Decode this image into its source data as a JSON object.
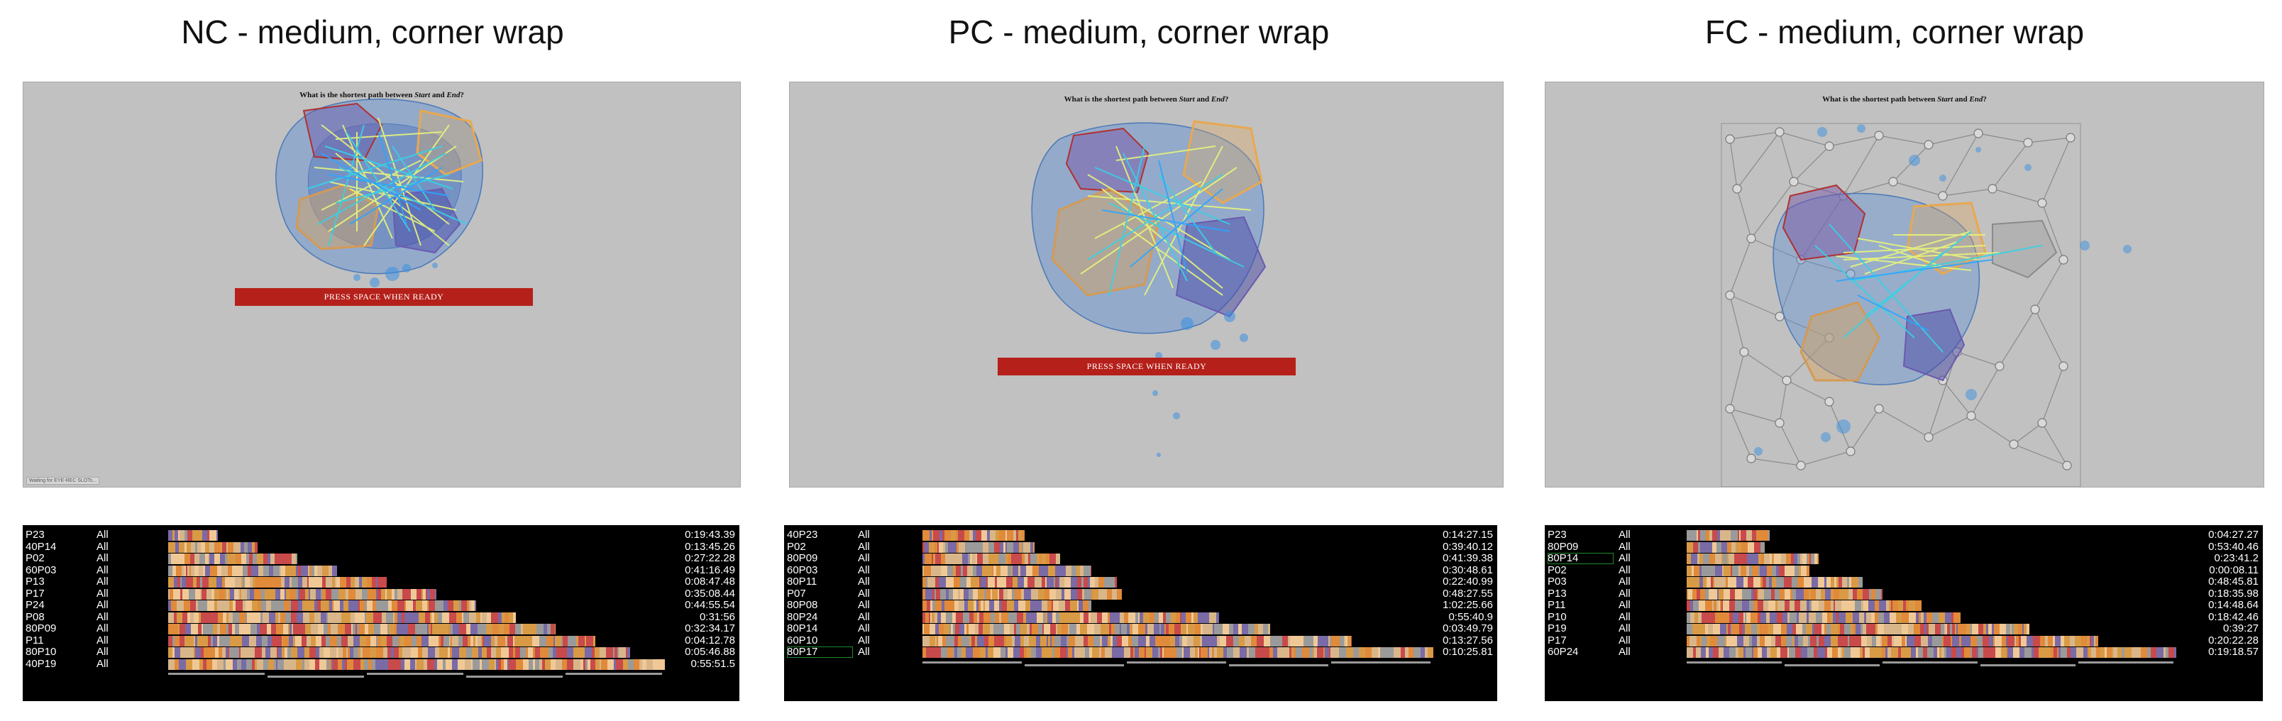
{
  "colors": {
    "background": "#c1c1c1",
    "press_bar": "#b5201a",
    "timeline_bg": "#000000",
    "event_palette": [
      "#c94a4b",
      "#d99a46",
      "#d9b68a",
      "#7a6aa6",
      "#e08a3a",
      "#9a9a9a",
      "#f0c896"
    ]
  },
  "panels": [
    {
      "title": "NC - medium, corner wrap",
      "question": {
        "pre": "What is the shortest path between ",
        "start": "Start",
        "mid": " and ",
        "end": "End",
        "post": "?"
      },
      "press_label": "PRESS SPACE WHEN READY",
      "status_text": "Waiting for EYE-REC SLOTs...",
      "rows": [
        {
          "id": "P23",
          "filter": "All",
          "duration": "0:19:43.39",
          "len": 0.1
        },
        {
          "id": "40P14",
          "filter": "All",
          "duration": "0:13:45.26",
          "len": 0.18
        },
        {
          "id": "P02",
          "filter": "All",
          "duration": "0:27:22.28",
          "len": 0.26
        },
        {
          "id": "60P03",
          "filter": "All",
          "duration": "0:41:16.49",
          "len": 0.34
        },
        {
          "id": "P13",
          "filter": "All",
          "duration": "0:08:47.48",
          "len": 0.44
        },
        {
          "id": "P17",
          "filter": "All",
          "duration": "0:35:08.44",
          "len": 0.54
        },
        {
          "id": "P24",
          "filter": "All",
          "duration": "0:44:55.54",
          "len": 0.62
        },
        {
          "id": "P08",
          "filter": "All",
          "duration": "0:31:56",
          "len": 0.7
        },
        {
          "id": "80P09",
          "filter": "All",
          "duration": "0:32:34.17",
          "len": 0.78
        },
        {
          "id": "P11",
          "filter": "All",
          "duration": "0:04:12.78",
          "len": 0.86
        },
        {
          "id": "80P10",
          "filter": "All",
          "duration": "0:05:46.88",
          "len": 0.93
        },
        {
          "id": "40P19",
          "filter": "All",
          "duration": "0:55:51.5",
          "len": 1.0
        }
      ]
    },
    {
      "title": "PC - medium, corner wrap",
      "question": {
        "pre": "What is the shortest path between ",
        "start": "Start",
        "mid": " and ",
        "end": "End",
        "post": "?"
      },
      "press_label": "PRESS SPACE WHEN READY",
      "rows": [
        {
          "id": "40P23",
          "filter": "All",
          "duration": "0:14:27.15",
          "len": 0.2
        },
        {
          "id": "P02",
          "filter": "All",
          "duration": "0:39:40.12",
          "len": 0.22
        },
        {
          "id": "80P09",
          "filter": "All",
          "duration": "0:41:39.38",
          "len": 0.27
        },
        {
          "id": "60P03",
          "filter": "All",
          "duration": "0:30:48.61",
          "len": 0.33
        },
        {
          "id": "80P11",
          "filter": "All",
          "duration": "0:22:40.99",
          "len": 0.38
        },
        {
          "id": "P07",
          "filter": "All",
          "duration": "0:48:27.55",
          "len": 0.39
        },
        {
          "id": "80P08",
          "filter": "All",
          "duration": "1:02:25.66",
          "len": 0.33
        },
        {
          "id": "80P24",
          "filter": "All",
          "duration": "0:55:40.9",
          "len": 0.58
        },
        {
          "id": "80P14",
          "filter": "All",
          "duration": "0:03:49.79",
          "len": 0.68
        },
        {
          "id": "60P10",
          "filter": "All",
          "duration": "0:13:27.56",
          "len": 0.84
        },
        {
          "id": "80P17",
          "filter": "All",
          "duration": "0:10:25.81",
          "len": 1.0,
          "selected": true
        }
      ]
    },
    {
      "title": "FC - medium, corner wrap",
      "question": {
        "pre": "What is the shortest path between ",
        "start": "Start",
        "mid": " and ",
        "end": "End",
        "post": "?"
      },
      "rows": [
        {
          "id": "P23",
          "filter": "All",
          "duration": "0:04:27.27",
          "len": 0.17
        },
        {
          "id": "80P09",
          "filter": "All",
          "duration": "0:53:40.46",
          "len": 0.16
        },
        {
          "id": "80P14",
          "filter": "All",
          "duration": "0:23:41.2",
          "len": 0.27,
          "selected": true
        },
        {
          "id": "P02",
          "filter": "All",
          "duration": "0:00:08.11",
          "len": 0.25
        },
        {
          "id": "P03",
          "filter": "All",
          "duration": "0:48:45.81",
          "len": 0.36
        },
        {
          "id": "P13",
          "filter": "All",
          "duration": "0:18:35.98",
          "len": 0.4
        },
        {
          "id": "P11",
          "filter": "All",
          "duration": "0:14:48.64",
          "len": 0.48
        },
        {
          "id": "P10",
          "filter": "All",
          "duration": "0:18:42.46",
          "len": 0.56
        },
        {
          "id": "P19",
          "filter": "All",
          "duration": "0:39:27",
          "len": 0.7
        },
        {
          "id": "P17",
          "filter": "All",
          "duration": "0:20:22.28",
          "len": 0.84
        },
        {
          "id": "60P24",
          "filter": "All",
          "duration": "0:19:18.57",
          "len": 1.0
        }
      ]
    }
  ]
}
